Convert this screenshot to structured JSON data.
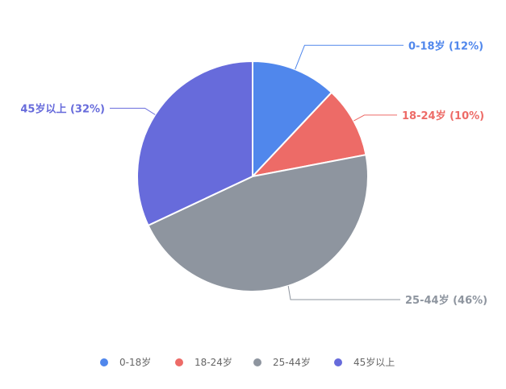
{
  "chart_data": {
    "type": "pie",
    "categories": [
      "0-18岁",
      "18-24岁",
      "25-44岁",
      "45岁以上"
    ],
    "values": [
      12,
      10,
      46,
      32
    ],
    "labels": [
      "0-18岁 (12%)",
      "18-24岁 (10%)",
      "25-44岁 (46%)",
      "45岁以上 (32%)"
    ],
    "colors": [
      "#5087ec",
      "#ed6b67",
      "#8e959f",
      "#676bdb"
    ],
    "legend": "bottom",
    "start_angle": "top",
    "direction": "clockwise"
  }
}
